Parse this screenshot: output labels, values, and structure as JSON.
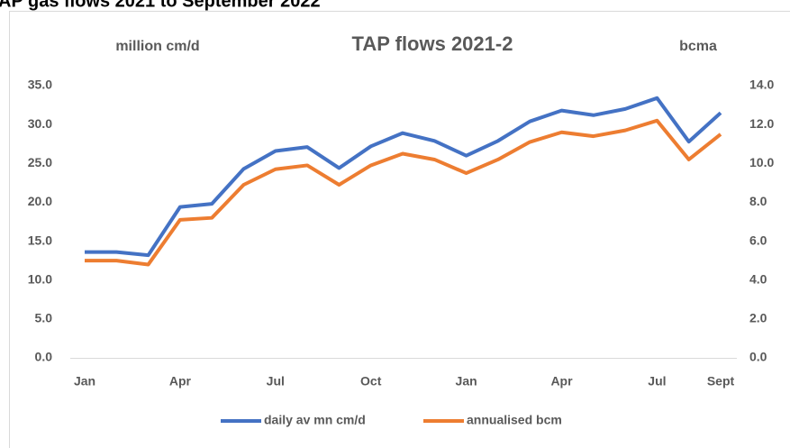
{
  "chart_data": {
    "type": "line",
    "heading": "AP gas flows 2021 to September 2022",
    "title": "TAP flows 2021-2",
    "y_label": "million cm/d",
    "y2_label": "bcma",
    "categories": [
      "Jan",
      null,
      null,
      "Apr",
      null,
      null,
      "Jul",
      null,
      null,
      "Oct",
      null,
      null,
      "Jan",
      null,
      null,
      "Apr",
      null,
      null,
      "Jul",
      null,
      "Sept"
    ],
    "series": [
      {
        "name": "daily av mn cm/d",
        "color": "#4472c4",
        "values": [
          13.6,
          13.6,
          13.2,
          19.4,
          19.8,
          24.3,
          26.6,
          27.1,
          24.4,
          27.2,
          28.9,
          27.9,
          26.0,
          27.9,
          30.4,
          31.8,
          31.2,
          32.0,
          33.4,
          27.8,
          31.5
        ]
      },
      {
        "name": "annualised bcm",
        "color": "#ed7d31",
        "axis": "y2",
        "values": [
          5.0,
          5.0,
          4.8,
          7.1,
          7.2,
          8.9,
          9.7,
          9.9,
          8.9,
          9.9,
          10.5,
          10.2,
          9.5,
          10.2,
          11.1,
          11.6,
          11.4,
          11.7,
          12.2,
          10.2,
          11.5
        ]
      }
    ],
    "ylim": [
      0,
      35
    ],
    "yticks": [
      {
        "value": 0,
        "label": "0.0"
      },
      {
        "value": 5,
        "label": "5.0"
      },
      {
        "value": 10,
        "label": "10.0"
      },
      {
        "value": 15,
        "label": "15.0"
      },
      {
        "value": 20,
        "label": "20.0"
      },
      {
        "value": 25,
        "label": "25.0"
      },
      {
        "value": 30,
        "label": "30.0"
      },
      {
        "value": 35,
        "label": "35.0"
      }
    ],
    "y2lim": [
      0,
      14
    ],
    "y2ticks": [
      {
        "value": 0,
        "label": "0.0"
      },
      {
        "value": 2,
        "label": "2.0"
      },
      {
        "value": 4,
        "label": "4.0"
      },
      {
        "value": 6,
        "label": "6.0"
      },
      {
        "value": 8,
        "label": "8.0"
      },
      {
        "value": 10,
        "label": "10.0"
      },
      {
        "value": 12,
        "label": "12.0"
      },
      {
        "value": 14,
        "label": "14.0"
      }
    ],
    "grid": false,
    "legend": "bottom"
  }
}
